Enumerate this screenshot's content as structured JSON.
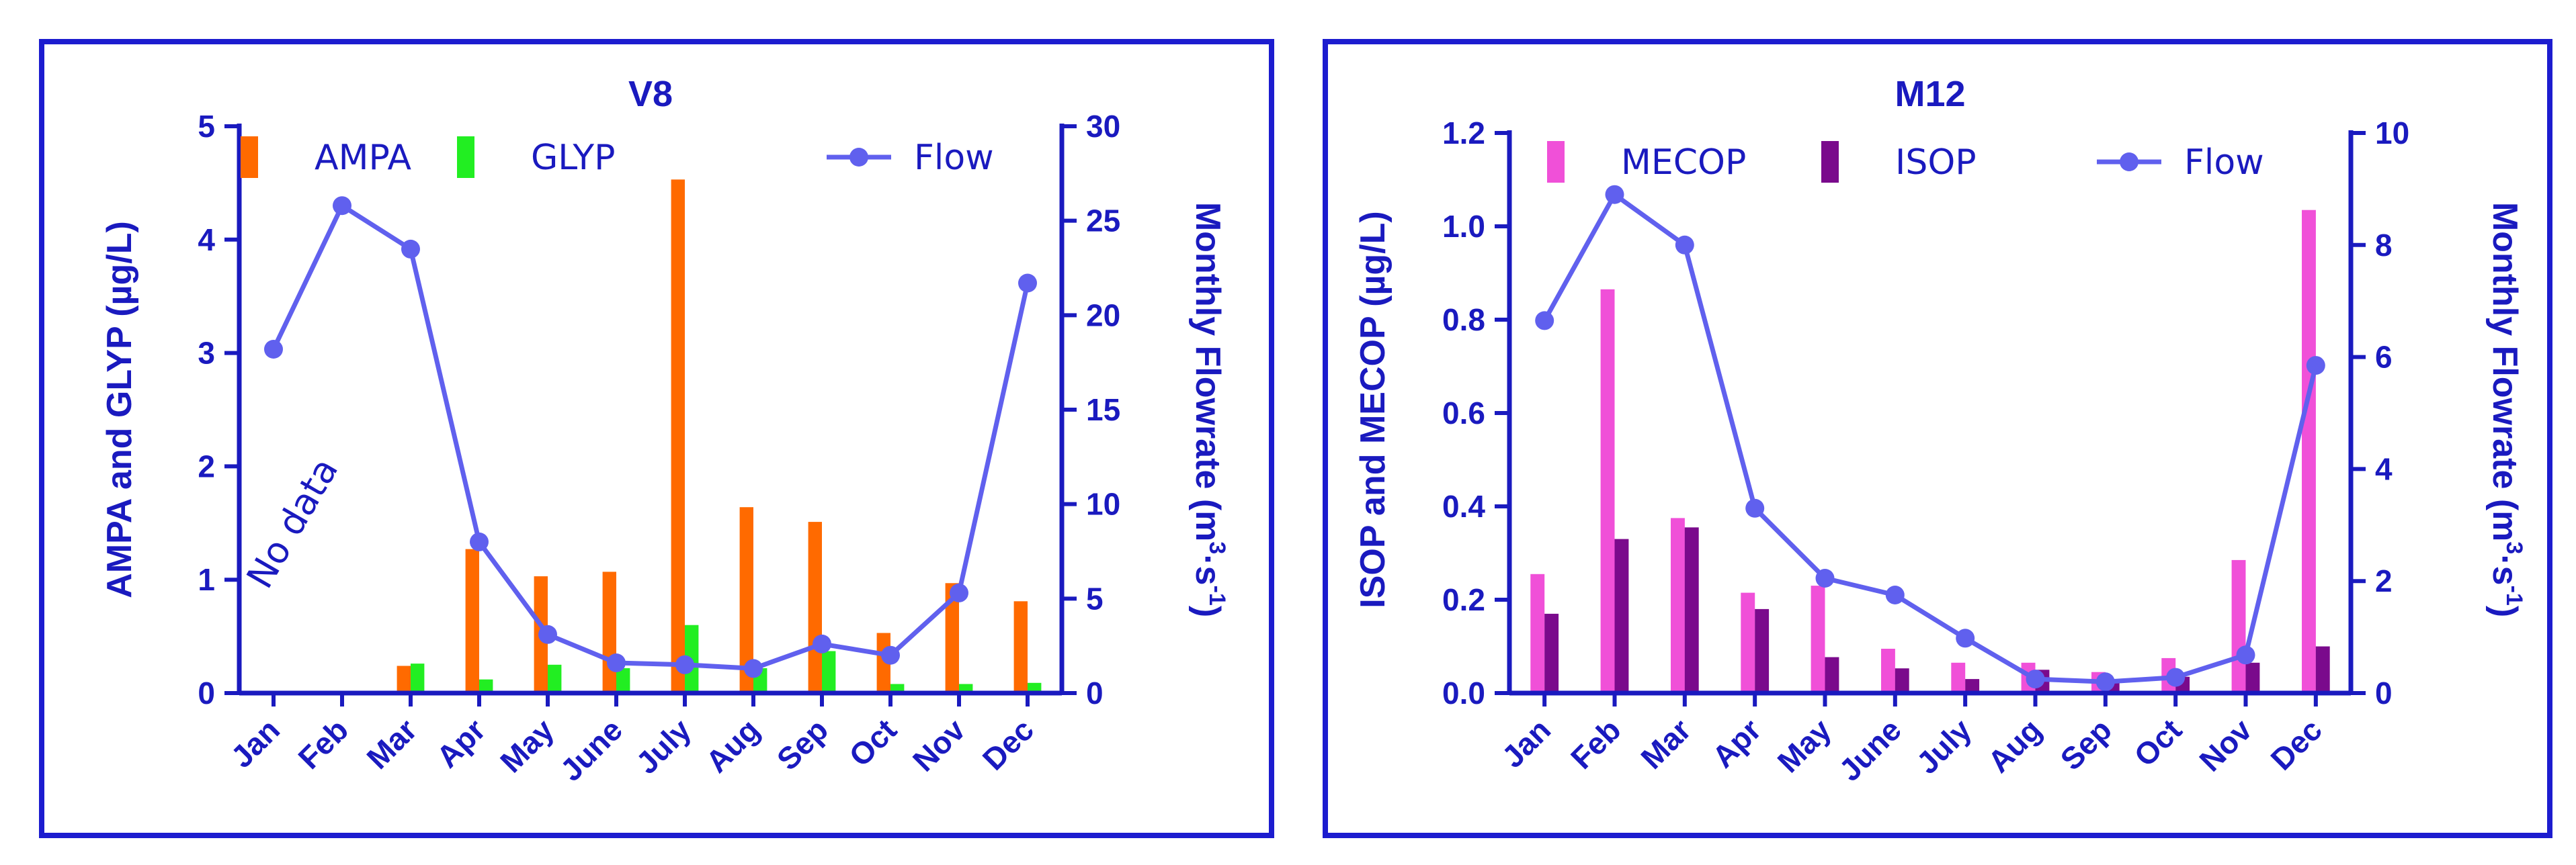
{
  "chart_data": [
    {
      "type": "bar",
      "title": "V8",
      "categories": [
        "Jan",
        "Feb",
        "Mar",
        "Apr",
        "May",
        "June",
        "July",
        "Aug",
        "Sep",
        "Oct",
        "Nov",
        "Dec"
      ],
      "ylabel": "AMPA and GLYP (µg/L)",
      "ylim": [
        0,
        5
      ],
      "yticks": [
        "0",
        "1",
        "2",
        "3",
        "4",
        "5"
      ],
      "y2label_main": "Monthly Flowrate (m",
      "y2label_sup1": "3",
      "y2label_mid": "·s",
      "y2label_sup2": "-1",
      "y2label_end": ")",
      "y2lim": [
        0,
        30
      ],
      "y2ticks": [
        "0",
        "5",
        "10",
        "15",
        "20",
        "25",
        "30"
      ],
      "series": [
        {
          "name": "AMPA",
          "axis": "left",
          "color": "#ff6a00",
          "values": [
            null,
            null,
            0.24,
            1.27,
            1.03,
            1.07,
            4.53,
            1.64,
            1.51,
            0.53,
            0.97,
            0.81
          ]
        },
        {
          "name": "GLYP",
          "axis": "left",
          "color": "#22ee22",
          "values": [
            null,
            null,
            0.26,
            0.12,
            0.25,
            0.22,
            0.6,
            0.22,
            0.37,
            0.08,
            0.08,
            0.09
          ]
        },
        {
          "name": "Flow",
          "axis": "right",
          "type": "line",
          "color": "#6060ee",
          "values": [
            18.2,
            25.8,
            23.5,
            8.0,
            3.1,
            1.6,
            1.5,
            1.3,
            2.6,
            2.0,
            5.3,
            21.7
          ]
        }
      ],
      "annotation": "No data",
      "legend": {
        "AMPA": "AMPA",
        "GLYP": "GLYP",
        "Flow": "Flow"
      }
    },
    {
      "type": "bar",
      "title": "M12",
      "categories": [
        "Jan",
        "Feb",
        "Mar",
        "Apr",
        "May",
        "June",
        "July",
        "Aug",
        "Sep",
        "Oct",
        "Nov",
        "Dec"
      ],
      "ylabel": "ISOP and MECOP (µg/L)",
      "ylim": [
        0,
        1.2
      ],
      "yticks": [
        "0.0",
        "0.2",
        "0.4",
        "0.6",
        "0.8",
        "1.0",
        "1.2"
      ],
      "y2label_main": "Monthly Flowrate (m",
      "y2label_sup1": "3",
      "y2label_mid": "·s",
      "y2label_sup2": "-1",
      "y2label_end": ")",
      "y2lim": [
        0,
        10
      ],
      "y2ticks": [
        "0",
        "2",
        "4",
        "6",
        "8",
        "10"
      ],
      "series": [
        {
          "name": "MECOP",
          "axis": "left",
          "color": "#f050d8",
          "values": [
            0.255,
            0.865,
            0.375,
            0.215,
            0.23,
            0.095,
            0.065,
            0.065,
            0.045,
            0.075,
            0.285,
            1.035
          ]
        },
        {
          "name": "ISOP",
          "axis": "left",
          "color": "#7a0a8c",
          "values": [
            0.17,
            0.33,
            0.355,
            0.18,
            0.077,
            0.053,
            0.03,
            0.05,
            0.025,
            0.035,
            0.065,
            0.1
          ]
        },
        {
          "name": "Flow",
          "axis": "right",
          "type": "line",
          "color": "#6060ee",
          "values": [
            6.65,
            8.9,
            8.0,
            3.3,
            2.05,
            1.75,
            0.98,
            0.25,
            0.2,
            0.28,
            0.68,
            5.85
          ]
        }
      ],
      "legend": {
        "MECOP": "MECOP",
        "ISOP": "ISOP",
        "Flow": "Flow"
      }
    }
  ]
}
